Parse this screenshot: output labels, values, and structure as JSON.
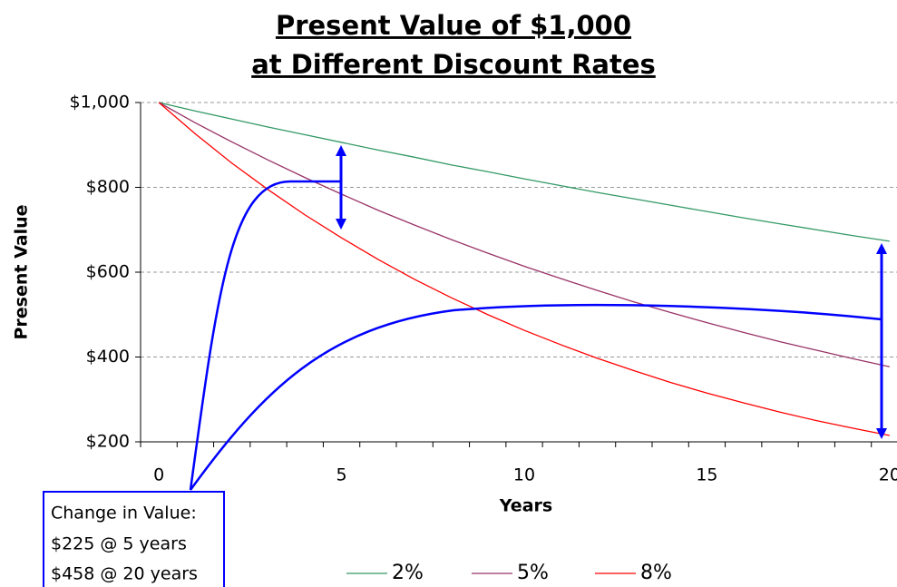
{
  "chart_data": {
    "type": "line",
    "title": [
      "Present Value of $1,000",
      "at Different Discount Rates"
    ],
    "x_label": "Years",
    "y_label": "Present Value",
    "x": [
      0,
      1,
      2,
      3,
      4,
      5,
      6,
      7,
      8,
      9,
      10,
      11,
      12,
      13,
      14,
      15,
      16,
      17,
      18,
      19,
      20
    ],
    "series": [
      {
        "name": "2%",
        "color": "#339966",
        "values": [
          1000,
          980,
          961,
          942,
          924,
          906,
          888,
          871,
          853,
          837,
          820,
          804,
          788,
          773,
          758,
          743,
          728,
          714,
          700,
          686,
          673
        ]
      },
      {
        "name": "5%",
        "color": "#993366",
        "values": [
          1000,
          952,
          907,
          864,
          823,
          784,
          746,
          711,
          677,
          645,
          614,
          585,
          557,
          530,
          505,
          481,
          458,
          436,
          416,
          396,
          377
        ]
      },
      {
        "name": "8%",
        "color": "#ff0000",
        "values": [
          1000,
          926,
          857,
          794,
          735,
          681,
          630,
          583,
          540,
          500,
          463,
          429,
          397,
          368,
          340,
          315,
          292,
          270,
          250,
          232,
          215
        ]
      }
    ],
    "xlim": [
      -0.5,
      20.5
    ],
    "xticks": [
      0,
      5,
      10,
      15,
      20
    ],
    "ylim": [
      200,
      1000
    ],
    "yticks": [
      {
        "value": 200,
        "label": "$200"
      },
      {
        "value": 400,
        "label": "$400"
      },
      {
        "value": 600,
        "label": "$600"
      },
      {
        "value": 800,
        "label": "$800"
      },
      {
        "value": 1000,
        "label": "$1,000"
      }
    ],
    "grid": true,
    "legend": "bottom",
    "annotations": [
      "Change in Value:",
      "$225 @ 5 years",
      "$458 @ 20 years"
    ]
  }
}
